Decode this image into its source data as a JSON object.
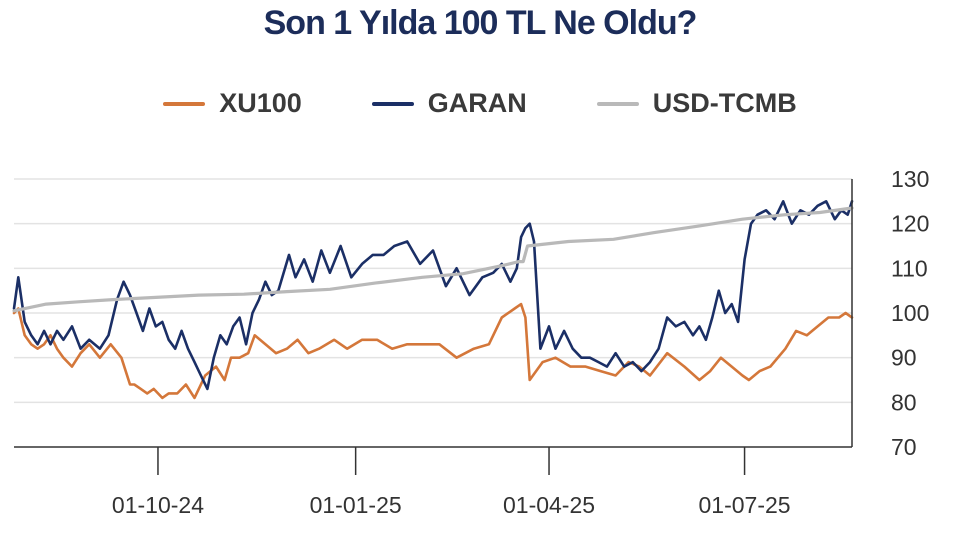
{
  "chart_data": {
    "type": "line",
    "title": "Son 1 Yılda 100 TL Ne Oldu?",
    "xlabel": "",
    "ylabel": "",
    "ylim": [
      70,
      130
    ],
    "y_ticks": [
      "70",
      "80",
      "90",
      "100",
      "110",
      "120",
      "130"
    ],
    "x_ticks": [
      {
        "label": "01-10-24",
        "x": "2024-10-01"
      },
      {
        "label": "01-01-25",
        "x": "2025-01-01"
      },
      {
        "label": "01-04-25",
        "x": "2025-04-01"
      },
      {
        "label": "01-07-25",
        "x": "2025-07-01"
      }
    ],
    "xlim": [
      "2024-07-26",
      "2025-08-20"
    ],
    "grid": true,
    "legend_position": "top",
    "series": [
      {
        "name": "XU100",
        "color": "#d4773a",
        "x": [
          "2024-07-26",
          "2024-07-28",
          "2024-07-31",
          "2024-08-03",
          "2024-08-06",
          "2024-08-09",
          "2024-08-12",
          "2024-08-15",
          "2024-08-18",
          "2024-08-22",
          "2024-08-26",
          "2024-08-30",
          "2024-09-04",
          "2024-09-09",
          "2024-09-14",
          "2024-09-18",
          "2024-09-20",
          "2024-09-23",
          "2024-09-26",
          "2024-09-29",
          "2024-10-03",
          "2024-10-06",
          "2024-10-10",
          "2024-10-14",
          "2024-10-18",
          "2024-10-23",
          "2024-10-28",
          "2024-11-01",
          "2024-11-04",
          "2024-11-08",
          "2024-11-12",
          "2024-11-15",
          "2024-11-20",
          "2024-11-25",
          "2024-11-30",
          "2024-12-05",
          "2024-12-10",
          "2024-12-15",
          "2024-12-22",
          "2024-12-28",
          "2025-01-04",
          "2025-01-11",
          "2025-01-18",
          "2025-01-25",
          "2025-02-01",
          "2025-02-09",
          "2025-02-17",
          "2025-02-25",
          "2025-03-04",
          "2025-03-10",
          "2025-03-16",
          "2025-03-19",
          "2025-03-21",
          "2025-03-23",
          "2025-03-29",
          "2025-04-04",
          "2025-04-11",
          "2025-04-18",
          "2025-04-25",
          "2025-05-02",
          "2025-05-08",
          "2025-05-13",
          "2025-05-18",
          "2025-05-26",
          "2025-06-03",
          "2025-06-10",
          "2025-06-15",
          "2025-06-20",
          "2025-06-25",
          "2025-06-30",
          "2025-07-03",
          "2025-07-08",
          "2025-07-13",
          "2025-07-20",
          "2025-07-25",
          "2025-07-30",
          "2025-08-04",
          "2025-08-09",
          "2025-08-14",
          "2025-08-17",
          "2025-08-20"
        ],
        "values": [
          100,
          101,
          95,
          93,
          92,
          93,
          95,
          92,
          90,
          88,
          91,
          93,
          90,
          93,
          90,
          84,
          84,
          83,
          82,
          83,
          81,
          82,
          82,
          84,
          81,
          86,
          88,
          85,
          90,
          90,
          91,
          95,
          93,
          91,
          92,
          94,
          91,
          92,
          94,
          92,
          94,
          94,
          92,
          93,
          93,
          93,
          90,
          92,
          93,
          99,
          101,
          102,
          99,
          85,
          89,
          90,
          88,
          88,
          87,
          86,
          89,
          88,
          86,
          91,
          88,
          85,
          87,
          90,
          88,
          86,
          85,
          87,
          88,
          92,
          96,
          95,
          97,
          99,
          99,
          100,
          99
        ]
      },
      {
        "name": "GARAN",
        "color": "#1b2f66",
        "x": [
          "2024-07-26",
          "2024-07-28",
          "2024-07-31",
          "2024-08-03",
          "2024-08-06",
          "2024-08-09",
          "2024-08-12",
          "2024-08-15",
          "2024-08-18",
          "2024-08-22",
          "2024-08-26",
          "2024-08-30",
          "2024-09-04",
          "2024-09-08",
          "2024-09-12",
          "2024-09-15",
          "2024-09-18",
          "2024-09-21",
          "2024-09-24",
          "2024-09-27",
          "2024-09-30",
          "2024-10-03",
          "2024-10-06",
          "2024-10-09",
          "2024-10-12",
          "2024-10-15",
          "2024-10-18",
          "2024-10-21",
          "2024-10-24",
          "2024-10-27",
          "2024-10-30",
          "2024-11-02",
          "2024-11-05",
          "2024-11-08",
          "2024-11-11",
          "2024-11-14",
          "2024-11-17",
          "2024-11-20",
          "2024-11-23",
          "2024-11-26",
          "2024-12-01",
          "2024-12-04",
          "2024-12-08",
          "2024-12-12",
          "2024-12-16",
          "2024-12-20",
          "2024-12-25",
          "2024-12-30",
          "2025-01-04",
          "2025-01-09",
          "2025-01-14",
          "2025-01-19",
          "2025-01-25",
          "2025-01-31",
          "2025-02-06",
          "2025-02-12",
          "2025-02-17",
          "2025-02-23",
          "2025-03-01",
          "2025-03-06",
          "2025-03-10",
          "2025-03-14",
          "2025-03-17",
          "2025-03-19",
          "2025-03-21",
          "2025-03-23",
          "2025-03-25",
          "2025-03-28",
          "2025-04-01",
          "2025-04-04",
          "2025-04-08",
          "2025-04-12",
          "2025-04-16",
          "2025-04-20",
          "2025-04-24",
          "2025-04-28",
          "2025-05-02",
          "2025-05-06",
          "2025-05-10",
          "2025-05-14",
          "2025-05-18",
          "2025-05-22",
          "2025-05-26",
          "2025-05-30",
          "2025-06-03",
          "2025-06-07",
          "2025-06-10",
          "2025-06-13",
          "2025-06-16",
          "2025-06-19",
          "2025-06-22",
          "2025-06-25",
          "2025-06-28",
          "2025-07-01",
          "2025-07-04",
          "2025-07-07",
          "2025-07-11",
          "2025-07-15",
          "2025-07-19",
          "2025-07-23",
          "2025-07-27",
          "2025-07-31",
          "2025-08-04",
          "2025-08-08",
          "2025-08-12",
          "2025-08-15",
          "2025-08-18",
          "2025-08-20"
        ],
        "values": [
          101,
          108,
          98,
          95,
          93,
          96,
          93,
          96,
          94,
          97,
          92,
          94,
          92,
          95,
          103,
          107,
          104,
          100,
          96,
          101,
          97,
          98,
          94,
          92,
          96,
          92,
          89,
          86,
          83,
          90,
          95,
          93,
          97,
          99,
          93,
          100,
          103,
          107,
          104,
          105,
          113,
          108,
          112,
          107,
          114,
          109,
          115,
          108,
          111,
          113,
          113,
          115,
          116,
          111,
          114,
          106,
          110,
          104,
          108,
          109,
          111,
          107,
          110,
          117,
          119,
          120,
          116,
          92,
          97,
          92,
          96,
          92,
          90,
          90,
          89,
          88,
          91,
          88,
          89,
          87,
          89,
          92,
          99,
          97,
          98,
          95,
          97,
          94,
          99,
          105,
          100,
          102,
          98,
          112,
          120,
          122,
          123,
          121,
          125,
          120,
          123,
          122,
          124,
          125,
          121,
          123,
          122,
          125
        ]
      },
      {
        "name": "USD-TCMB",
        "color": "#b9b9b9",
        "x": [
          "2024-07-26",
          "2024-08-10",
          "2024-08-25",
          "2024-09-10",
          "2024-09-30",
          "2024-10-20",
          "2024-11-10",
          "2024-11-30",
          "2024-12-20",
          "2025-01-10",
          "2025-02-01",
          "2025-02-20",
          "2025-03-10",
          "2025-03-18",
          "2025-03-20",
          "2025-03-22",
          "2025-04-10",
          "2025-05-01",
          "2025-05-20",
          "2025-06-10",
          "2025-06-30",
          "2025-07-20",
          "2025-08-05",
          "2025-08-20"
        ],
        "values": [
          100.5,
          102,
          102.5,
          103,
          103.5,
          104,
          104.2,
          104.8,
          105.3,
          106.7,
          108,
          108.8,
          110.6,
          111.5,
          111.5,
          115,
          116,
          116.5,
          118,
          119.5,
          121,
          122,
          122.5,
          123.5
        ]
      }
    ]
  }
}
